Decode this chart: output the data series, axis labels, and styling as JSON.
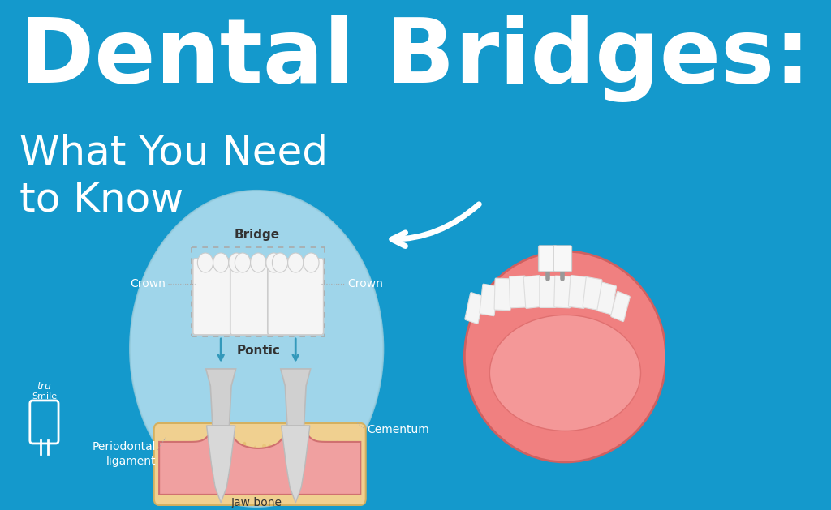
{
  "bg_color": "#1499cc",
  "title_line1": "Dental Bridges:",
  "subtitle": "What You Need\nto Know",
  "title_color": "#ffffff",
  "subtitle_color": "#ffffff",
  "labels": {
    "bridge": "Bridge",
    "crown_left": "Crown",
    "crown_right": "Crown",
    "pontic": "Pontic",
    "periodontal": "Periodontal\nligament",
    "cementum": "Cementum",
    "jaw_bone": "Jaw bone"
  },
  "circle_color": "#b8e0f0",
  "tooth_white": "#f5f5f5",
  "tooth_gray": "#e0e0e0",
  "gum_color": "#f0a0a0",
  "gum_edge": "#d07070",
  "bone_color": "#f0d090",
  "bone_edge": "#d4b060",
  "root_color": "#d8d8d8",
  "label_dark": "#333333",
  "arrow_teal": "#3399bb",
  "dashed_color": "#aaaaaa"
}
